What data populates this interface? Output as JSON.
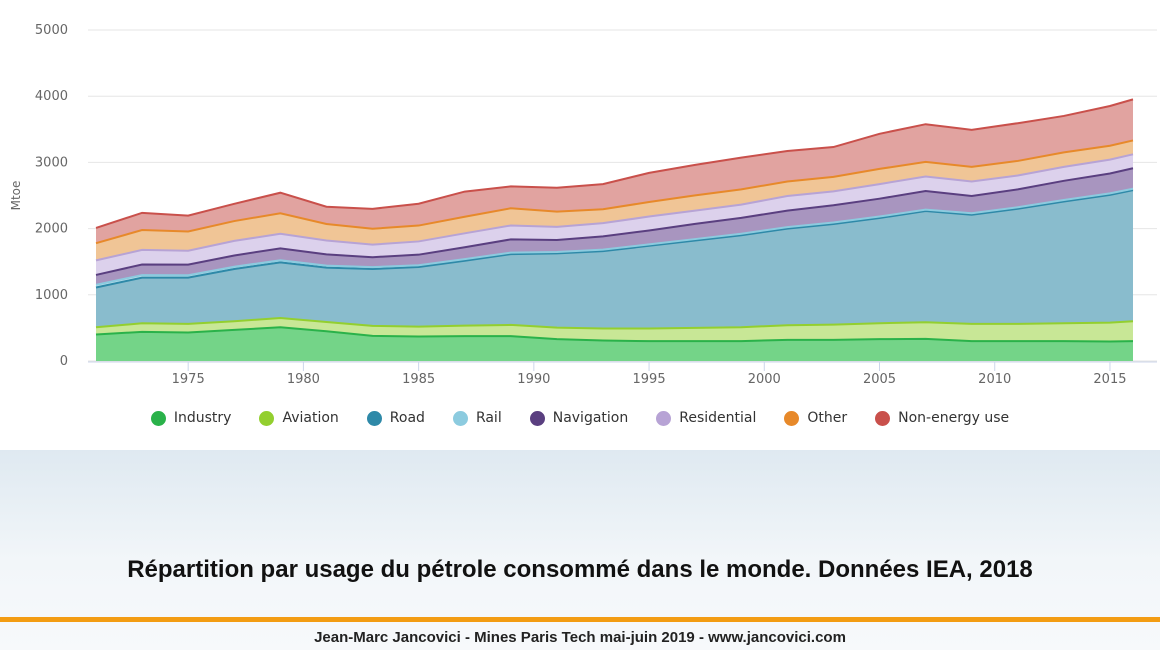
{
  "chart_data": {
    "type": "area",
    "stacked": true,
    "ylabel": "Mtoe",
    "ylim": [
      0,
      5000
    ],
    "yticks": [
      0,
      1000,
      2000,
      3000,
      4000,
      5000
    ],
    "xlim": [
      1971,
      2016
    ],
    "xticks": [
      1975,
      1980,
      1985,
      1990,
      1995,
      2000,
      2005,
      2010,
      2015
    ],
    "grid": "horizontal",
    "legend_position": "bottom",
    "x": [
      1971,
      1973,
      1975,
      1977,
      1979,
      1981,
      1983,
      1985,
      1987,
      1989,
      1991,
      1993,
      1995,
      1997,
      1999,
      2001,
      2003,
      2005,
      2007,
      2009,
      2011,
      2013,
      2015,
      2016
    ],
    "series": [
      {
        "name": "Industry",
        "color": "#2ab24a",
        "fill": "#74d488",
        "values": [
          400,
          440,
          430,
          470,
          510,
          450,
          380,
          370,
          375,
          375,
          330,
          310,
          300,
          300,
          300,
          320,
          320,
          330,
          335,
          300,
          300,
          300,
          295,
          300
        ]
      },
      {
        "name": "Aviation",
        "color": "#93cf2f",
        "fill": "#c8e796",
        "values": [
          110,
          130,
          130,
          130,
          140,
          140,
          150,
          150,
          160,
          170,
          175,
          180,
          190,
          200,
          210,
          220,
          230,
          240,
          250,
          260,
          260,
          270,
          285,
          300
        ]
      },
      {
        "name": "Road",
        "color": "#2e89a8",
        "fill": "#89bccd",
        "values": [
          600,
          690,
          700,
          790,
          840,
          820,
          860,
          900,
          980,
          1070,
          1120,
          1170,
          1250,
          1320,
          1390,
          1460,
          1520,
          1590,
          1680,
          1650,
          1740,
          1840,
          1930,
          1980
        ]
      },
      {
        "name": "Rail",
        "color": "#8ccbdf",
        "fill": "#c2e4ee",
        "values": [
          40,
          38,
          36,
          34,
          32,
          30,
          28,
          26,
          24,
          22,
          22,
          22,
          22,
          22,
          22,
          22,
          22,
          22,
          22,
          22,
          22,
          22,
          22,
          22
        ]
      },
      {
        "name": "Navigation",
        "color": "#5a3f80",
        "fill": "#a895bf",
        "values": [
          150,
          160,
          160,
          170,
          180,
          170,
          150,
          160,
          180,
          200,
          180,
          200,
          210,
          230,
          240,
          250,
          260,
          270,
          280,
          260,
          270,
          290,
          300,
          310
        ]
      },
      {
        "name": "Residential",
        "color": "#b7a3d5",
        "fill": "#dcd1ec",
        "values": [
          220,
          220,
          210,
          220,
          220,
          210,
          190,
          200,
          210,
          210,
          200,
          200,
          210,
          200,
          200,
          220,
          210,
          220,
          220,
          220,
          210,
          210,
          210,
          210
        ]
      },
      {
        "name": "Other",
        "color": "#e7892a",
        "fill": "#f0c596",
        "values": [
          260,
          300,
          290,
          300,
          310,
          250,
          240,
          240,
          250,
          260,
          230,
          210,
          220,
          230,
          230,
          220,
          220,
          230,
          220,
          220,
          220,
          220,
          210,
          210
        ]
      },
      {
        "name": "Non-energy use",
        "color": "#c9504b",
        "fill": "#e1a3a0",
        "values": [
          230,
          260,
          240,
          260,
          310,
          260,
          300,
          330,
          380,
          330,
          360,
          380,
          440,
          460,
          480,
          460,
          450,
          530,
          570,
          560,
          570,
          550,
          600,
          620
        ]
      }
    ]
  },
  "caption": "Répartition par usage du pétrole consommé dans le monde. Données IEA, 2018",
  "credit": "Jean-Marc Jancovici - Mines Paris Tech mai-juin 2019 - www.jancovici.com"
}
